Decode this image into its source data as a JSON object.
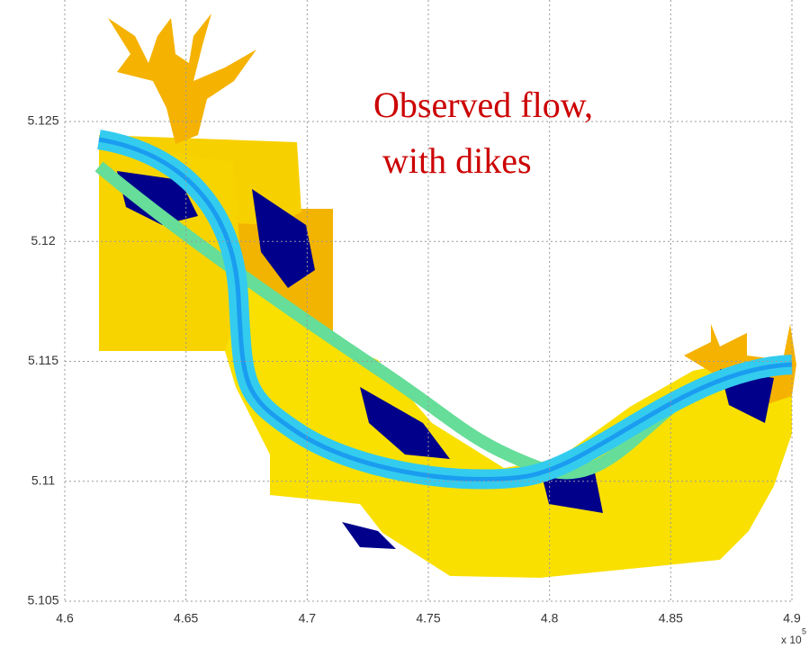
{
  "chart_data": {
    "type": "map",
    "annotation": [
      "Observed flow,",
      "with dikes"
    ],
    "xlim": [
      4.6,
      4.9
    ],
    "xticks": [
      4.6,
      4.65,
      4.7,
      4.75,
      4.8,
      4.85,
      4.9
    ],
    "ylim": [
      5.105,
      5.13
    ],
    "yticks": [
      5.105,
      5.11,
      5.115,
      5.12,
      5.125
    ],
    "x_multiplier": {
      "base": "x 10",
      "exponent": "5"
    },
    "grid": true
  }
}
